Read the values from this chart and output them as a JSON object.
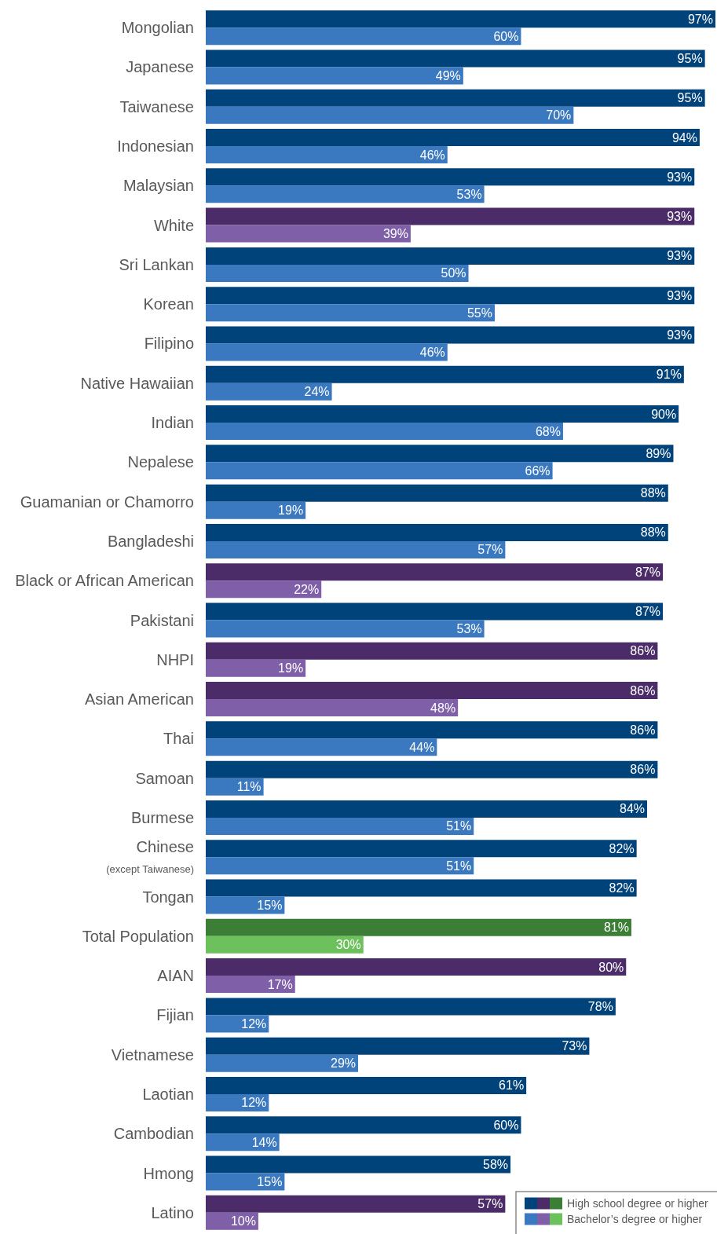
{
  "chart_data": {
    "type": "bar",
    "orientation": "horizontal",
    "tick_labels": "y",
    "legend": "bottom right",
    "xlim": [
      0,
      97
    ],
    "categories": [
      "Mongolian",
      "Japanese",
      "Taiwanese",
      "Indonesian",
      "Malaysian",
      "White",
      "Sri Lankan",
      "Korean",
      "Filipino",
      "Native Hawaiian",
      "Indian",
      "Nepalese",
      "Guamanian or Chamorro",
      "Bangladeshi",
      "Black or African American",
      "Pakistani",
      "NHPI",
      "Asian American",
      "Thai",
      "Samoan",
      "Burmese",
      "Chinese\n(except Taiwanese)",
      "Tongan",
      "Total Population",
      "AIAN",
      "Fijian",
      "Vietnamese",
      "Laotian",
      "Cambodian",
      "Hmong",
      "Latino"
    ],
    "series": [
      {
        "name": "High school degree or higher",
        "values": [
          97,
          95,
          95,
          94,
          93,
          93,
          93,
          93,
          93,
          91,
          90,
          89,
          88,
          88,
          87,
          87,
          86,
          86,
          86,
          86,
          84,
          82,
          82,
          81,
          80,
          78,
          73,
          61,
          60,
          58,
          57
        ],
        "value_labels": [
          "97%",
          "95%",
          "95%",
          "94%",
          "93%",
          "93%",
          "93%",
          "93%",
          "93%",
          "91%",
          "90%",
          "89%",
          "88%",
          "88%",
          "87%",
          "87%",
          "86%",
          "86%",
          "86%",
          "86%",
          "84%",
          "82%",
          "82%",
          "81%",
          "80%",
          "78%",
          "73%",
          "61%",
          "60%",
          "58%",
          "57%"
        ],
        "colors": [
          "#00427a",
          "#00427a",
          "#00427a",
          "#00427a",
          "#00427a",
          "#4b2c69",
          "#00427a",
          "#00427a",
          "#00427a",
          "#00427a",
          "#00427a",
          "#00427a",
          "#00427a",
          "#00427a",
          "#4b2c69",
          "#00427a",
          "#4b2c69",
          "#4b2c69",
          "#00427a",
          "#00427a",
          "#00427a",
          "#00427a",
          "#00427a",
          "#3c7e36",
          "#4b2c69",
          "#00427a",
          "#00427a",
          "#00427a",
          "#00427a",
          "#00427a",
          "#4b2c69"
        ]
      },
      {
        "name": "Bachelor’s degree or higher",
        "values": [
          60,
          49,
          70,
          46,
          53,
          39,
          50,
          55,
          46,
          24,
          68,
          66,
          19,
          57,
          22,
          53,
          19,
          48,
          44,
          11,
          51,
          51,
          15,
          30,
          17,
          12,
          29,
          12,
          14,
          15,
          10
        ],
        "value_labels": [
          "60%",
          "49%",
          "70%",
          "46%",
          "53%",
          "39%",
          "50%",
          "55%",
          "46%",
          "24%",
          "68%",
          "66%",
          "19%",
          "57%",
          "22%",
          "53%",
          "19%",
          "48%",
          "44%",
          "11%",
          "51%",
          "51%",
          "15%",
          "30%",
          "17%",
          "12%",
          "29%",
          "12%",
          "14%",
          "15%",
          "10%"
        ],
        "colors": [
          "#3a78bf",
          "#3a78bf",
          "#3a78bf",
          "#3a78bf",
          "#3a78bf",
          "#7f5fa8",
          "#3a78bf",
          "#3a78bf",
          "#3a78bf",
          "#3a78bf",
          "#3a78bf",
          "#3a78bf",
          "#3a78bf",
          "#3a78bf",
          "#7f5fa8",
          "#3a78bf",
          "#7f5fa8",
          "#7f5fa8",
          "#3a78bf",
          "#3a78bf",
          "#3a78bf",
          "#3a78bf",
          "#3a78bf",
          "#6dc15d",
          "#7f5fa8",
          "#3a78bf",
          "#3a78bf",
          "#3a78bf",
          "#3a78bf",
          "#3a78bf",
          "#7f5fa8"
        ]
      }
    ]
  }
}
